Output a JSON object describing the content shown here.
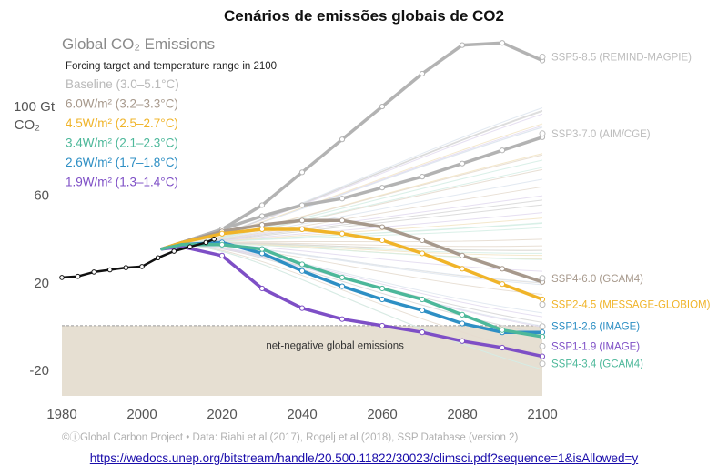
{
  "page": {
    "title": "Cenários de emissões globais de CO2",
    "link": "https://wedocs.unep.org/bitstream/handle/20.500.11822/30023/climsci.pdf?sequence=1&isAllowed=y"
  },
  "chart_data": {
    "type": "line",
    "title": "Global CO₂ Emissions",
    "ylabel_line1": "100 Gt",
    "ylabel_line2": "CO₂",
    "xlim": [
      1980,
      2100
    ],
    "ylim": [
      -32,
      132
    ],
    "x_ticks": [
      "1980",
      "2000",
      "2020",
      "2040",
      "2060",
      "2080",
      "2100"
    ],
    "y_ticks": [
      {
        "value": 60,
        "label": "60"
      },
      {
        "value": 20,
        "label": "20"
      },
      {
        "value": -20,
        "label": "-20"
      }
    ],
    "grid": false,
    "negative_region": {
      "label": "net-negative global emissions",
      "from": -32,
      "to": 0,
      "color": "#e6dfd2"
    },
    "legend": {
      "placement": "top-left",
      "header": "Forcing target and temperature range in 2100",
      "entries": [
        {
          "label": "Baseline (3.0–5.1°C)",
          "color": "#b9b9b9"
        },
        {
          "label": "6.0W/m² (3.2–3.3°C)",
          "color": "#a7998c"
        },
        {
          "label": "4.5W/m² (2.5–2.7°C)",
          "color": "#f0b429"
        },
        {
          "label": "3.4W/m² (2.1–2.3°C)",
          "color": "#4db89a"
        },
        {
          "label": "2.6W/m² (1.7–1.8°C)",
          "color": "#2e8fc4"
        },
        {
          "label": "1.9W/m² (1.3–1.4°C)",
          "color": "#7e4fc6"
        }
      ]
    },
    "historical": {
      "color": "#111111",
      "x": [
        1980,
        1984,
        1988,
        1992,
        1996,
        2000,
        2004,
        2008,
        2012,
        2016,
        2018
      ],
      "y": [
        22,
        22.5,
        24.5,
        25.5,
        26.5,
        27,
        31,
        34,
        36,
        38,
        39.5
      ]
    },
    "series": [
      {
        "name": "SSP5-8.5 (REMIND-MAGPIE)",
        "color": "#b3b3b3",
        "x": [
          2005,
          2010,
          2020,
          2030,
          2040,
          2050,
          2060,
          2070,
          2080,
          2090,
          2100
        ],
        "y": [
          35,
          38,
          44,
          55,
          70,
          85,
          100,
          115,
          128,
          129,
          121
        ]
      },
      {
        "name": "SSP3-7.0 (AIM/CGE)",
        "color": "#b3b3b3",
        "x": [
          2005,
          2010,
          2020,
          2030,
          2040,
          2050,
          2060,
          2070,
          2080,
          2090,
          2100
        ],
        "y": [
          35,
          38,
          44,
          50,
          55,
          58,
          63,
          68,
          74,
          80,
          86
        ]
      },
      {
        "name": "SSP4-6.0 (GCAM4)",
        "color": "#a7998c",
        "x": [
          2005,
          2010,
          2020,
          2030,
          2040,
          2050,
          2060,
          2070,
          2080,
          2090,
          2100
        ],
        "y": [
          35,
          38,
          43,
          46,
          48,
          48,
          45,
          39,
          32,
          26,
          20
        ]
      },
      {
        "name": "SSP2-4.5 (MESSAGE-GLOBIOM)",
        "color": "#f0b429",
        "x": [
          2005,
          2010,
          2020,
          2030,
          2040,
          2050,
          2060,
          2070,
          2080,
          2090,
          2100
        ],
        "y": [
          35,
          38,
          42,
          44,
          44,
          42,
          39,
          33,
          26,
          19,
          12
        ]
      },
      {
        "name": "SSP1-2.6 (IMAGE)",
        "color": "#2e8fc4",
        "x": [
          2005,
          2010,
          2020,
          2030,
          2040,
          2050,
          2060,
          2070,
          2080,
          2090,
          2100
        ],
        "y": [
          35,
          37,
          38,
          33,
          25,
          18,
          12,
          7,
          1,
          -3,
          -3
        ]
      },
      {
        "name": "SSP1-1.9 (IMAGE)",
        "color": "#7e4fc6",
        "x": [
          2005,
          2010,
          2020,
          2030,
          2040,
          2050,
          2060,
          2070,
          2080,
          2090,
          2100
        ],
        "y": [
          35,
          36,
          32,
          17,
          8,
          3,
          0,
          -3,
          -7,
          -10,
          -14
        ]
      },
      {
        "name": "SSP4-3.4 (GCAM4)",
        "color": "#4db89a",
        "x": [
          2005,
          2010,
          2020,
          2030,
          2040,
          2050,
          2060,
          2070,
          2080,
          2090,
          2100
        ],
        "y": [
          35,
          37,
          37,
          35,
          28,
          22,
          17,
          12,
          5,
          -2,
          -5
        ]
      }
    ],
    "series_label_colors": [
      "#bcbcbc",
      "#bcbcbc",
      "#a7998c",
      "#f0b429",
      "#2e8fc4",
      "#7e4fc6",
      "#4db89a"
    ],
    "credit": "©ⓘGlobal Carbon Project  •  Data: Riahi et al (2017), Rogelj et al (2018), SSP Database (version 2)"
  }
}
